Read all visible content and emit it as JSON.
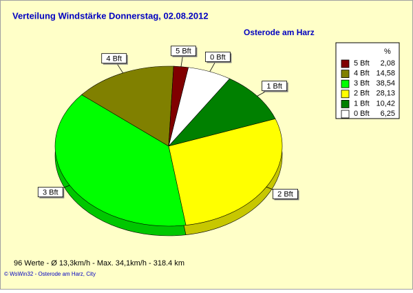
{
  "chart_data": {
    "type": "pie",
    "title": "Verteilung Windstärke  Donnerstag, 02.08.2012",
    "subtitle": "Osterode am Harz",
    "legend_title": "%",
    "categories": [
      "5 Bft",
      "4 Bft",
      "3 Bft",
      "2 Bft",
      "1 Bft",
      "0 Bft"
    ],
    "values": [
      2.08,
      14.58,
      38.54,
      28.13,
      10.42,
      6.25
    ],
    "value_labels": [
      "2,08",
      "14,58",
      "38,54",
      "28,13",
      "10,42",
      "6,25"
    ],
    "colors": [
      "#800000",
      "#808000",
      "#00ff00",
      "#ffff00",
      "#008000",
      "#ffffff"
    ],
    "footer": "96 Werte   -   Ø 13,3km/h  -  Max. 34,1km/h  -   318.4 km",
    "copyright": "© WsWin32  -  Osterode am Harz, City"
  }
}
